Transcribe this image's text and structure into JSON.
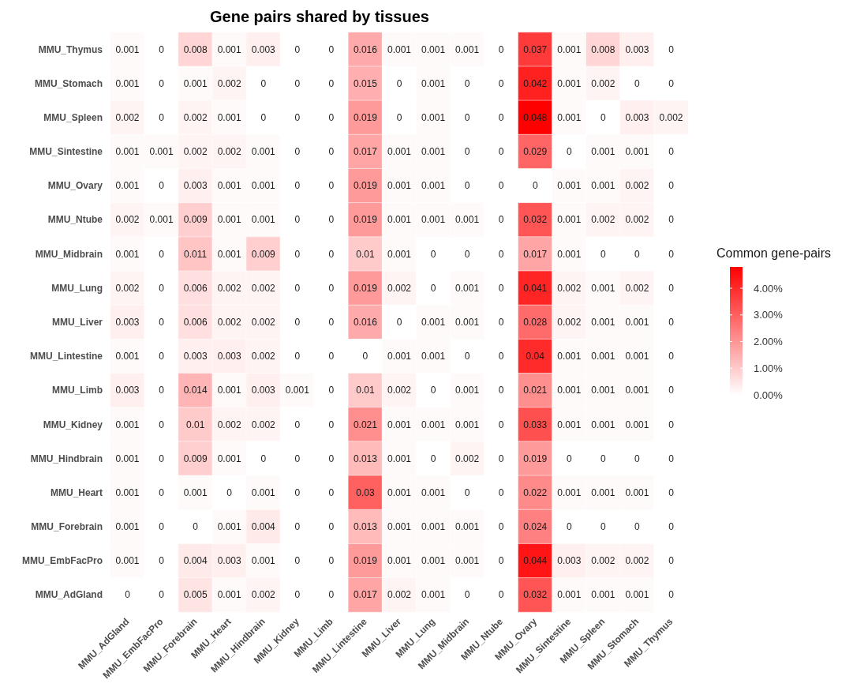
{
  "chart_data": {
    "type": "heatmap",
    "title": "Gene pairs shared by tissues",
    "clabel": "Common gene-pairs",
    "categories": [
      "MMU_AdGland",
      "MMU_EmbFacPro",
      "MMU_Forebrain",
      "MMU_Heart",
      "MMU_Hindbrain",
      "MMU_Kidney",
      "MMU_Limb",
      "MMU_Lintestine",
      "MMU_Liver",
      "MMU_Lung",
      "MMU_Midbrain",
      "MMU_Ntube",
      "MMU_Ovary",
      "MMU_Sintestine",
      "MMU_Spleen",
      "MMU_Stomach",
      "MMU_Thymus"
    ],
    "y_categories": [
      "MMU_Thymus",
      "MMU_Stomach",
      "MMU_Spleen",
      "MMU_Sintestine",
      "MMU_Ovary",
      "MMU_Ntube",
      "MMU_Midbrain",
      "MMU_Lung",
      "MMU_Liver",
      "MMU_Lintestine",
      "MMU_Limb",
      "MMU_Kidney",
      "MMU_Hindbrain",
      "MMU_Heart",
      "MMU_Forebrain",
      "MMU_EmbFacPro",
      "MMU_AdGland"
    ],
    "cells": [
      [
        0.001,
        0,
        0.008,
        0.001,
        0.003,
        0,
        0,
        0.016,
        0.001,
        0.001,
        0.001,
        0,
        0.037,
        0.001,
        0.008,
        0.003,
        0
      ],
      [
        0.001,
        0,
        0.001,
        0.002,
        0,
        0,
        0,
        0.015,
        0,
        0.001,
        0,
        0,
        0.042,
        0.001,
        0.002,
        0,
        0
      ],
      [
        0.002,
        0,
        0.002,
        0.001,
        0,
        0,
        0,
        0.019,
        0,
        0.001,
        0,
        0,
        0.048,
        0.001,
        0,
        0.003,
        0.002
      ],
      [
        0.001,
        0.001,
        0.002,
        0.002,
        0.001,
        0,
        0,
        0.017,
        0.001,
        0.001,
        0,
        0,
        0.029,
        0,
        0.001,
        0.001,
        0
      ],
      [
        0.001,
        0,
        0.003,
        0.001,
        0.001,
        0,
        0,
        0.019,
        0.001,
        0.001,
        0,
        0,
        0,
        0.001,
        0.001,
        0.002,
        0
      ],
      [
        0.002,
        0.001,
        0.009,
        0.001,
        0.001,
        0,
        0,
        0.019,
        0.001,
        0.001,
        0.001,
        0,
        0.032,
        0.001,
        0.002,
        0.002,
        0
      ],
      [
        0.001,
        0,
        0.011,
        0.001,
        0.009,
        0,
        0,
        0.01,
        0.001,
        0,
        0,
        0,
        0.017,
        0.001,
        0,
        0,
        0
      ],
      [
        0.002,
        0,
        0.006,
        0.002,
        0.002,
        0,
        0,
        0.019,
        0.002,
        0,
        0.001,
        0,
        0.041,
        0.002,
        0.001,
        0.002,
        0
      ],
      [
        0.003,
        0,
        0.006,
        0.002,
        0.002,
        0,
        0,
        0.016,
        0,
        0.001,
        0.001,
        0,
        0.028,
        0.002,
        0.001,
        0.001,
        0
      ],
      [
        0.001,
        0,
        0.003,
        0.003,
        0.002,
        0,
        0,
        0,
        0.001,
        0.001,
        0,
        0,
        0.04,
        0.001,
        0.001,
        0.001,
        0
      ],
      [
        0.003,
        0,
        0.014,
        0.001,
        0.003,
        0.001,
        0,
        0.01,
        0.002,
        0,
        0.001,
        0,
        0.021,
        0.001,
        0.001,
        0.001,
        0
      ],
      [
        0.001,
        0,
        0.01,
        0.002,
        0.002,
        0,
        0,
        0.021,
        0.001,
        0.001,
        0.001,
        0,
        0.033,
        0.001,
        0.001,
        0.001,
        0
      ],
      [
        0.001,
        0,
        0.009,
        0.001,
        0,
        0,
        0,
        0.013,
        0.001,
        0,
        0.002,
        0,
        0.019,
        0,
        0,
        0,
        0
      ],
      [
        0.001,
        0,
        0.001,
        0,
        0.001,
        0,
        0,
        0.03,
        0.001,
        0.001,
        0,
        0,
        0.022,
        0.001,
        0.001,
        0.001,
        0
      ],
      [
        0.001,
        0,
        0,
        0.001,
        0.004,
        0,
        0,
        0.013,
        0.001,
        0.001,
        0.001,
        0,
        0.024,
        0,
        0,
        0,
        0
      ],
      [
        0.001,
        0,
        0.004,
        0.003,
        0.001,
        0,
        0,
        0.019,
        0.001,
        0.001,
        0.001,
        0,
        0.044,
        0.003,
        0.002,
        0.002,
        0
      ],
      [
        0,
        0,
        0.005,
        0.001,
        0.002,
        0,
        0,
        0.017,
        0.002,
        0.001,
        0,
        0,
        0.032,
        0.001,
        0.001,
        0.001,
        0
      ]
    ],
    "clim": [
      0,
      0.048
    ],
    "cticks": [
      {
        "value": 0,
        "label": "0.00%"
      },
      {
        "value": 0.01,
        "label": "1.00%"
      },
      {
        "value": 0.02,
        "label": "2.00%"
      },
      {
        "value": 0.03,
        "label": "3.00%"
      },
      {
        "value": 0.04,
        "label": "4.00%"
      }
    ],
    "colors": [
      "#ffffff",
      "#ff0000"
    ],
    "data_labels": true,
    "grid": false
  }
}
